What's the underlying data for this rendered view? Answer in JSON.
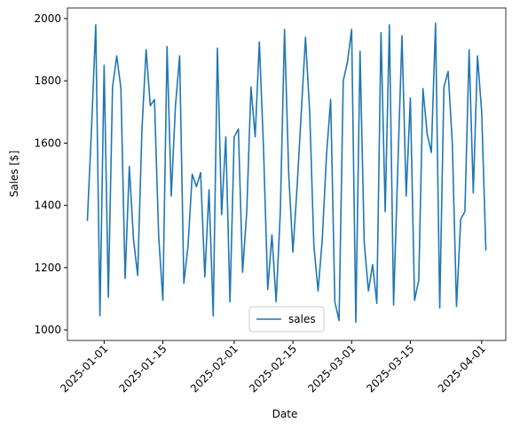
{
  "chart_data": {
    "type": "line",
    "xlabel": "Date",
    "ylabel": "Sales [$]",
    "x": [
      "2024-12-28",
      "2024-12-29",
      "2024-12-30",
      "2024-12-31",
      "2025-01-01",
      "2025-01-02",
      "2025-01-03",
      "2025-01-04",
      "2025-01-05",
      "2025-01-06",
      "2025-01-07",
      "2025-01-08",
      "2025-01-09",
      "2025-01-10",
      "2025-01-11",
      "2025-01-12",
      "2025-01-13",
      "2025-01-14",
      "2025-01-15",
      "2025-01-16",
      "2025-01-17",
      "2025-01-18",
      "2025-01-19",
      "2025-01-20",
      "2025-01-21",
      "2025-01-22",
      "2025-01-23",
      "2025-01-24",
      "2025-01-25",
      "2025-01-26",
      "2025-01-27",
      "2025-01-28",
      "2025-01-29",
      "2025-01-30",
      "2025-01-31",
      "2025-02-01",
      "2025-02-02",
      "2025-02-03",
      "2025-02-04",
      "2025-02-05",
      "2025-02-06",
      "2025-02-07",
      "2025-02-08",
      "2025-02-09",
      "2025-02-10",
      "2025-02-11",
      "2025-02-12",
      "2025-02-13",
      "2025-02-14",
      "2025-02-15",
      "2025-02-16",
      "2025-02-17",
      "2025-02-18",
      "2025-02-19",
      "2025-02-20",
      "2025-02-21",
      "2025-02-22",
      "2025-02-23",
      "2025-02-24",
      "2025-02-25",
      "2025-02-26",
      "2025-02-27",
      "2025-02-28",
      "2025-03-01",
      "2025-03-02",
      "2025-03-03",
      "2025-03-04",
      "2025-03-05",
      "2025-03-06",
      "2025-03-07",
      "2025-03-08",
      "2025-03-09",
      "2025-03-10",
      "2025-03-11",
      "2025-03-12",
      "2025-03-13",
      "2025-03-14",
      "2025-03-15",
      "2025-03-16",
      "2025-03-17",
      "2025-03-18",
      "2025-03-19",
      "2025-03-20",
      "2025-03-21",
      "2025-03-22",
      "2025-03-23",
      "2025-03-24",
      "2025-03-25",
      "2025-03-26",
      "2025-03-27",
      "2025-03-28",
      "2025-03-29",
      "2025-03-30",
      "2025-03-31",
      "2025-04-01",
      "2025-04-02"
    ],
    "series": [
      {
        "name": "sales",
        "color": "#1f77b4",
        "values": [
          1350,
          1650,
          1980,
          1045,
          1850,
          1105,
          1780,
          1880,
          1775,
          1165,
          1525,
          1290,
          1175,
          1640,
          1900,
          1720,
          1740,
          1300,
          1095,
          1910,
          1430,
          1720,
          1880,
          1150,
          1270,
          1500,
          1460,
          1505,
          1170,
          1450,
          1045,
          1905,
          1370,
          1620,
          1090,
          1620,
          1645,
          1185,
          1380,
          1780,
          1620,
          1925,
          1580,
          1130,
          1305,
          1090,
          1380,
          1965,
          1500,
          1250,
          1460,
          1700,
          1940,
          1700,
          1270,
          1125,
          1290,
          1560,
          1740,
          1090,
          1030,
          1800,
          1860,
          1965,
          1025,
          1895,
          1280,
          1125,
          1210,
          1085,
          1955,
          1380,
          1980,
          1080,
          1520,
          1945,
          1430,
          1745,
          1095,
          1160,
          1775,
          1630,
          1570,
          1985,
          1070,
          1780,
          1830,
          1600,
          1075,
          1355,
          1380,
          1900,
          1440,
          1880,
          1700,
          1255
        ]
      }
    ],
    "xlim": [
      "2024-12-23T06:00:00Z",
      "2025-04-06T18:00:00Z"
    ],
    "xticks": [
      "2025-01-01",
      "2025-01-15",
      "2025-02-01",
      "2025-02-15",
      "2025-03-01",
      "2025-03-15",
      "2025-04-01"
    ],
    "ylim": [
      966,
      2034
    ],
    "yticks": [
      1000,
      1200,
      1400,
      1600,
      1800,
      2000
    ],
    "legend": "lower center"
  }
}
